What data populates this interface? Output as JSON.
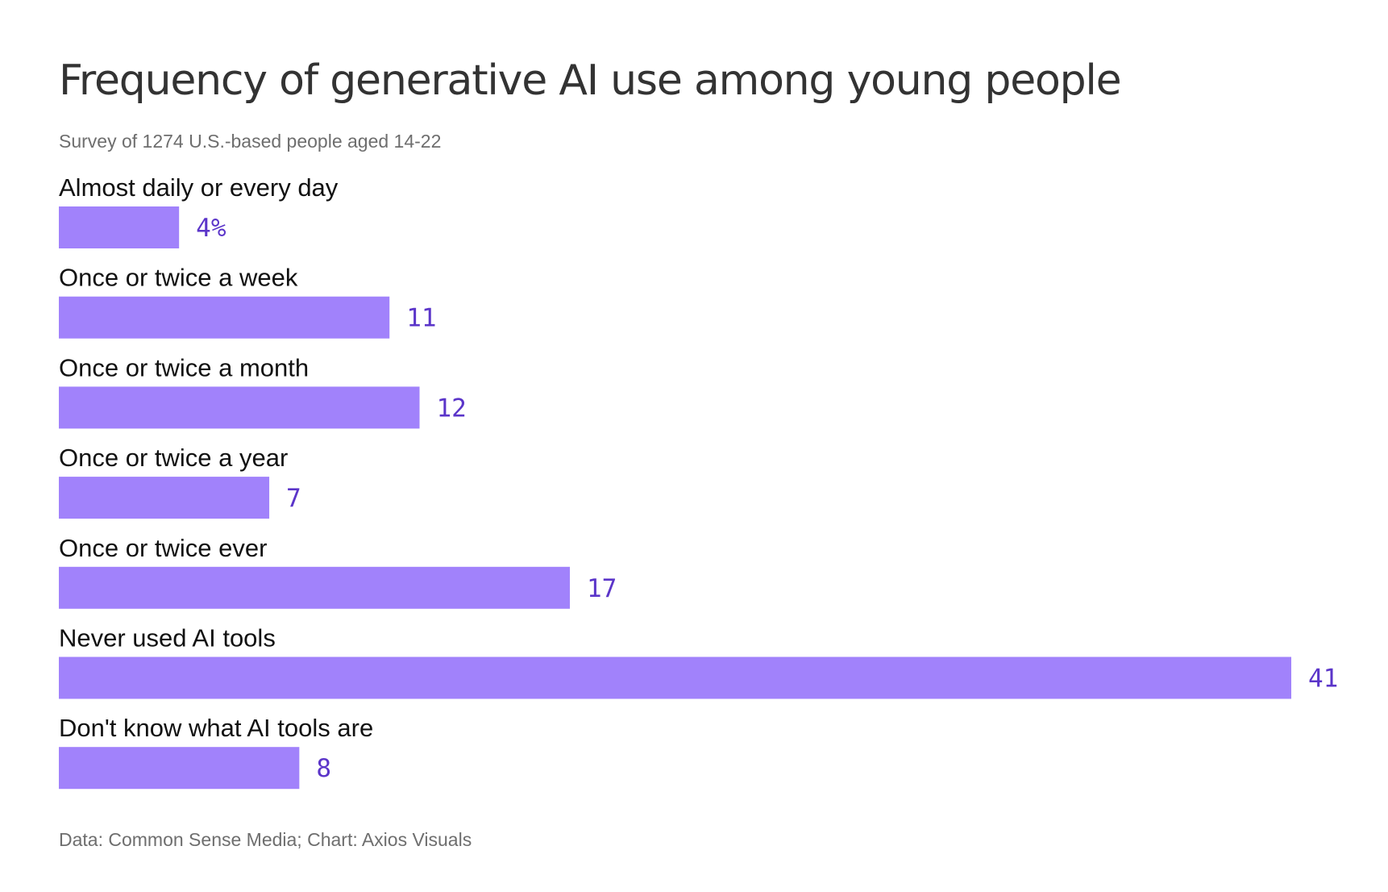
{
  "chart_data": {
    "type": "bar",
    "orientation": "horizontal",
    "title": "Frequency of generative AI use among young people",
    "subtitle": "Survey of 1274 U.S.-based people aged 14-22",
    "categories": [
      "Almost daily or every day",
      "Once or twice a week",
      "Once or twice a month",
      "Once or twice a year",
      "Once or twice ever",
      "Never used AI tools",
      "Don't know what AI tools are"
    ],
    "values": [
      4,
      11,
      12,
      7,
      17,
      41,
      8
    ],
    "value_labels": [
      "4%",
      "11",
      "12",
      "7",
      "17",
      "41",
      "8"
    ],
    "unit": "%",
    "xlim": [
      0,
      41
    ],
    "grid": false,
    "legend": "none",
    "source": "Data: Common Sense Media; Chart: Axios Visuals"
  },
  "colors": {
    "bar": "#a182fb",
    "value_label": "#5b35c9",
    "title": "#333333",
    "subtitle": "#6e6e6e"
  }
}
